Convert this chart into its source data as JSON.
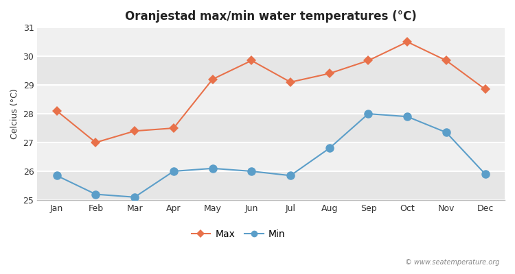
{
  "title": "Oranjestad max/min water temperatures (°C)",
  "ylabel": "Celcius (°C)",
  "months": [
    "Jan",
    "Feb",
    "Mar",
    "Apr",
    "May",
    "Jun",
    "Jul",
    "Aug",
    "Sep",
    "Oct",
    "Nov",
    "Dec"
  ],
  "max_values": [
    28.1,
    27.0,
    27.4,
    27.5,
    29.2,
    29.85,
    29.1,
    29.4,
    29.85,
    30.5,
    29.85,
    28.85
  ],
  "min_values": [
    25.85,
    25.2,
    25.1,
    26.0,
    26.1,
    26.0,
    25.85,
    26.8,
    28.0,
    27.9,
    27.35,
    25.9
  ],
  "max_color": "#e8714a",
  "min_color": "#5b9ec9",
  "fig_bg_color": "#ffffff",
  "plot_bg_color": "#f5f5f5",
  "band_color_light": "#f0f0f0",
  "band_color_dark": "#e6e6e6",
  "ylim": [
    25,
    31
  ],
  "yticks": [
    25,
    26,
    27,
    28,
    29,
    30,
    31
  ],
  "grid_color": "#ffffff",
  "watermark": "© www.seatemperature.org",
  "legend_max": "Max",
  "legend_min": "Min",
  "max_marker": "D",
  "min_marker": "o",
  "linewidth": 1.5,
  "max_markersize": 7,
  "min_markersize": 9
}
